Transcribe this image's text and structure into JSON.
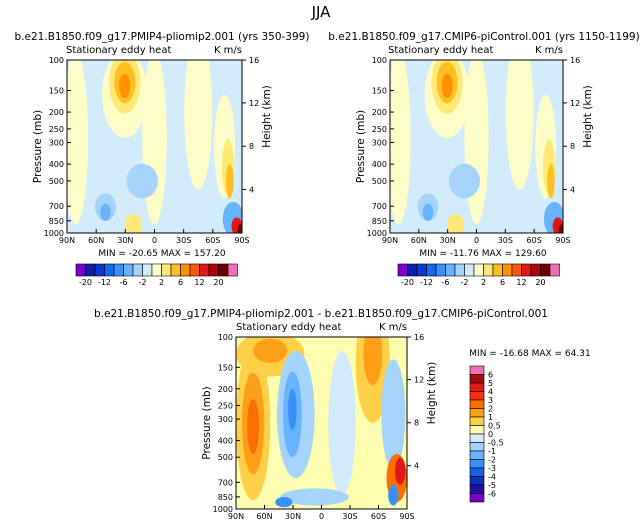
{
  "figure_title": "JJA",
  "chart_data": [
    {
      "type": "heatmap",
      "title": "b.e21.B1850.f09_g17.PMIP4-pliomip2.001 (yrs 350-399)",
      "subtitle": "Stationary eddy heat",
      "units": "K m/s",
      "ylabel": "Pressure (mb)",
      "ylabel_right": "Height (km)",
      "x_ticks": [
        "90N",
        "60N",
        "30N",
        "0",
        "30S",
        "60S",
        "90S"
      ],
      "y_ticks": [
        "100",
        "150",
        "200",
        "250",
        "300",
        "400",
        "500",
        "700",
        "850",
        "1000"
      ],
      "height_ticks": [
        "16",
        "12",
        "8",
        "4"
      ],
      "stats": "MIN = -20.65   MAX = 157.20",
      "colorbar_levels": [
        -20,
        -16,
        -12,
        -8,
        -6,
        -4,
        -2,
        -1,
        1,
        2,
        4,
        6,
        8,
        12,
        16,
        20
      ],
      "colorbar_labels": [
        "-20",
        "-12",
        "-6",
        "-2",
        "2",
        "6",
        "12",
        "20"
      ],
      "colors": [
        "#7b00c8",
        "#1020a8",
        "#1038d8",
        "#1868f0",
        "#3890f8",
        "#68b4fc",
        "#a4d4fc",
        "#d2ecfc",
        "#fefec8",
        "#fde878",
        "#fdc020",
        "#fd9000",
        "#f85810",
        "#e01818",
        "#a80808",
        "#700000",
        "#f070b8"
      ]
    },
    {
      "type": "heatmap",
      "title": "b.e21.B1850.f09_g17.CMIP6-piControl.001 (yrs 1150-1199)",
      "subtitle": "Stationary eddy heat",
      "units": "K m/s",
      "ylabel": "Pressure (mb)",
      "ylabel_right": "Height (km)",
      "x_ticks": [
        "90N",
        "60N",
        "30N",
        "0",
        "30S",
        "60S",
        "90S"
      ],
      "y_ticks": [
        "100",
        "150",
        "200",
        "250",
        "300",
        "400",
        "500",
        "700",
        "850",
        "1000"
      ],
      "height_ticks": [
        "16",
        "12",
        "8",
        "4"
      ],
      "stats": "MIN = -11.76   MAX = 129.60",
      "colorbar_levels": [
        -20,
        -16,
        -12,
        -8,
        -6,
        -4,
        -2,
        -1,
        1,
        2,
        4,
        6,
        8,
        12,
        16,
        20
      ],
      "colorbar_labels": [
        "-20",
        "-12",
        "-6",
        "-2",
        "2",
        "6",
        "12",
        "20"
      ],
      "colors": [
        "#7b00c8",
        "#1020a8",
        "#1038d8",
        "#1868f0",
        "#3890f8",
        "#68b4fc",
        "#a4d4fc",
        "#d2ecfc",
        "#fefec8",
        "#fde878",
        "#fdc020",
        "#fd9000",
        "#f85810",
        "#e01818",
        "#a80808",
        "#700000",
        "#f070b8"
      ]
    },
    {
      "type": "heatmap",
      "title": "b.e21.B1850.f09_g17.PMIP4-pliomip2.001 - b.e21.B1850.f09_g17.CMIP6-piControl.001",
      "subtitle": "Stationary eddy heat",
      "units": "K m/s",
      "ylabel": "Pressure (mb)",
      "ylabel_right": "Height (km)",
      "x_ticks": [
        "90N",
        "60N",
        "30N",
        "0",
        "30S",
        "60S",
        "90S"
      ],
      "y_ticks": [
        "100",
        "150",
        "200",
        "250",
        "300",
        "400",
        "500",
        "700",
        "850",
        "1000"
      ],
      "height_ticks": [
        "16",
        "12",
        "8",
        "4"
      ],
      "stats": "MIN = -16.68   MAX =  64.31",
      "colorbar_labels": [
        "6",
        "5",
        "4",
        "3",
        "2",
        "1",
        "0.5",
        "0",
        "-0.5",
        "-1",
        "-2",
        "-3",
        "-4",
        "-5",
        "-6"
      ],
      "colors": [
        "#f070b8",
        "#a80808",
        "#e01818",
        "#f83010",
        "#fd7000",
        "#fda018",
        "#fdd048",
        "#fefeb0",
        "#d2ecfc",
        "#a4d4fc",
        "#68b4fc",
        "#3890f8",
        "#1860e8",
        "#1030c0",
        "#2010a0",
        "#7b00c8"
      ]
    }
  ]
}
